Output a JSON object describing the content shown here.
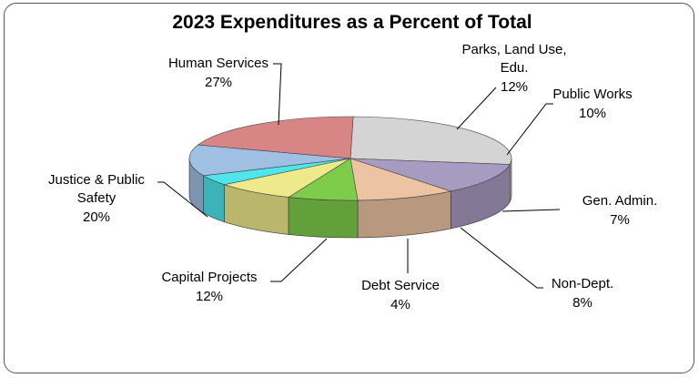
{
  "chart_data": {
    "type": "pie",
    "title": "2023 Expenditures as a Percent of Total",
    "slices": [
      {
        "label_lines": [
          "Human Services"
        ],
        "percent_label": "27%",
        "value": 27,
        "color": "#d4d4d4"
      },
      {
        "label_lines": [
          "Parks, Land Use,",
          "Edu."
        ],
        "percent_label": "12%",
        "value": 12,
        "color": "#a89bc2"
      },
      {
        "label_lines": [
          "Public Works"
        ],
        "percent_label": "10%",
        "value": 10,
        "color": "#ecc3a3"
      },
      {
        "label_lines": [
          "Gen. Admin."
        ],
        "percent_label": "7%",
        "value": 7,
        "color": "#7fcc4a"
      },
      {
        "label_lines": [
          "Non-Dept."
        ],
        "percent_label": "8%",
        "value": 8,
        "color": "#eeea8c"
      },
      {
        "label_lines": [
          "Debt Service"
        ],
        "percent_label": "4%",
        "value": 4,
        "color": "#4ee6ea"
      },
      {
        "label_lines": [
          "Capital Projects"
        ],
        "percent_label": "12%",
        "value": 12,
        "color": "#9fbfe3"
      },
      {
        "label_lines": [
          "Justice & Public",
          "Safety"
        ],
        "percent_label": "20%",
        "value": 20,
        "color": "#d88585"
      }
    ]
  }
}
